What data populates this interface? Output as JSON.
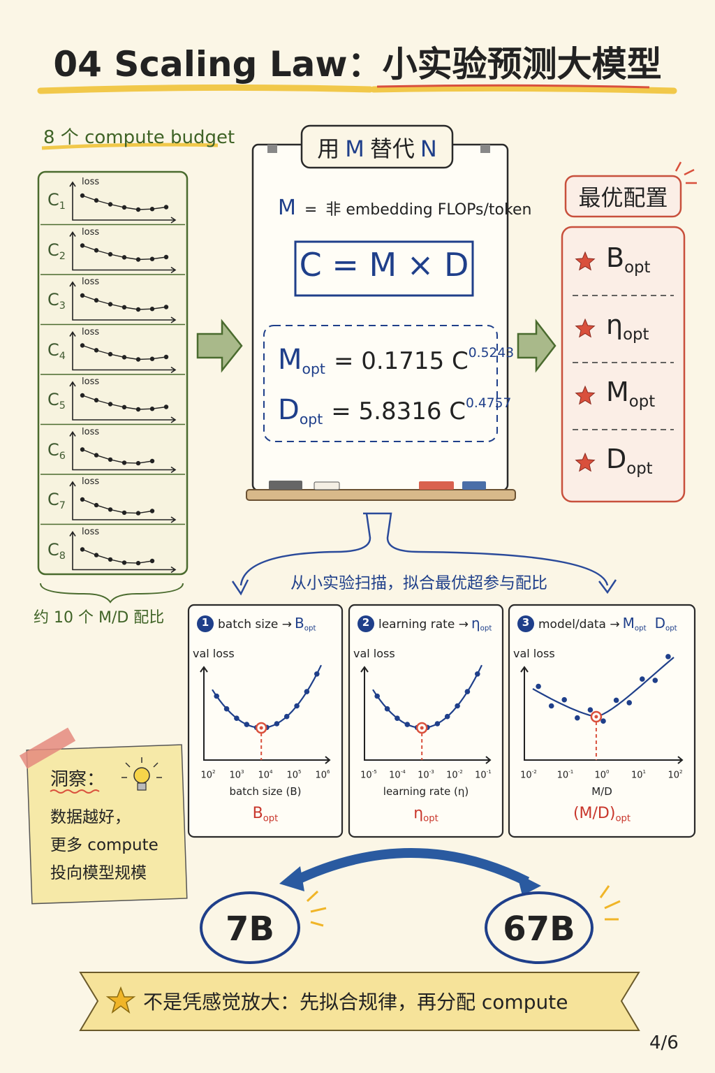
{
  "title": "04 Scaling Law：小实验预测大模型",
  "budgets": {
    "heading": "8 个 compute budget",
    "items": [
      {
        "symbol": "C",
        "index": "1",
        "axis": "loss"
      },
      {
        "symbol": "C",
        "index": "2",
        "axis": "loss"
      },
      {
        "symbol": "C",
        "index": "3",
        "axis": "loss"
      },
      {
        "symbol": "C",
        "index": "4",
        "axis": "loss"
      },
      {
        "symbol": "C",
        "index": "5",
        "axis": "loss"
      },
      {
        "symbol": "C",
        "index": "6",
        "axis": "loss"
      },
      {
        "symbol": "C",
        "index": "7",
        "axis": "loss"
      },
      {
        "symbol": "C",
        "index": "8",
        "axis": "loss"
      }
    ],
    "footer": "约 10 个 M/D 配比"
  },
  "board": {
    "heading_parts": [
      "用",
      "M",
      "替代",
      "N"
    ],
    "definition": [
      "M",
      "=",
      "非 embedding FLOPs/token"
    ],
    "equation": "C = M × D",
    "formulas": [
      {
        "var": "M",
        "sub": "opt",
        "rhs": "= 0.1715 C",
        "exp": "0.5243"
      },
      {
        "var": "D",
        "sub": "opt",
        "rhs": "= 5.8316 C",
        "exp": "0.4757"
      }
    ]
  },
  "optimal": {
    "heading": "最优配置",
    "items": [
      {
        "symbol": "B",
        "sub": "opt"
      },
      {
        "symbol": "η",
        "sub": "opt"
      },
      {
        "symbol": "M",
        "sub": "opt"
      },
      {
        "symbol": "D",
        "sub": "opt"
      }
    ]
  },
  "sweep": "从小实验扫描，拟合最优超参与配比",
  "panels": [
    {
      "number": "1",
      "title": "batch size →",
      "targets": [
        {
          "symbol": "B",
          "sub": "opt"
        }
      ],
      "y_label": "val loss",
      "x_ticks": [
        {
          "base": "10",
          "exp": "2"
        },
        {
          "base": "10",
          "exp": "3"
        },
        {
          "base": "10",
          "exp": "4"
        },
        {
          "base": "10",
          "exp": "5"
        },
        {
          "base": "10",
          "exp": "6"
        }
      ],
      "x_label": "batch size (B)",
      "result": {
        "symbol": "B",
        "sub": "opt"
      }
    },
    {
      "number": "2",
      "title": "learning rate →",
      "targets": [
        {
          "symbol": "η",
          "sub": "opt"
        }
      ],
      "y_label": "val loss",
      "x_ticks": [
        {
          "base": "10",
          "exp": "-5"
        },
        {
          "base": "10",
          "exp": "-4"
        },
        {
          "base": "10",
          "exp": "-3"
        },
        {
          "base": "10",
          "exp": "-2"
        },
        {
          "base": "10",
          "exp": "-1"
        }
      ],
      "x_label": "learning rate (η)",
      "result": {
        "symbol": "η",
        "sub": "opt"
      }
    },
    {
      "number": "3",
      "title": "model/data →",
      "targets": [
        {
          "symbol": "M",
          "sub": "opt"
        },
        {
          "symbol": "D",
          "sub": "opt"
        }
      ],
      "y_label": "val loss",
      "x_ticks": [
        {
          "base": "10",
          "exp": "-2"
        },
        {
          "base": "10",
          "exp": "-1"
        },
        {
          "base": "10",
          "exp": "0"
        },
        {
          "base": "10",
          "exp": "1"
        },
        {
          "base": "10",
          "exp": "2"
        }
      ],
      "x_label": "M/D",
      "result": {
        "symbol": "(M/D)",
        "sub": "opt"
      }
    }
  ],
  "note": {
    "heading": "洞察：",
    "lines": [
      "数据越好，",
      "更多 compute",
      "投向模型规模"
    ]
  },
  "models": [
    "7B",
    "67B"
  ],
  "banner": "不是凭感觉放大：先拟合规律，再分配 compute",
  "page": "4/6"
}
